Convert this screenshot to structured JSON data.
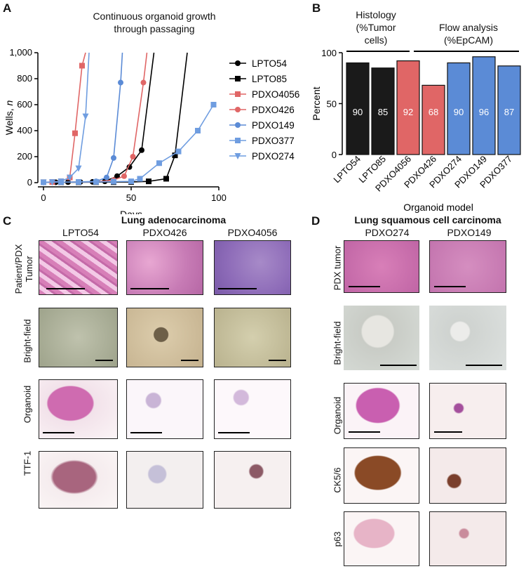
{
  "panels": {
    "A": "A",
    "B": "B",
    "C": "C",
    "D": "D"
  },
  "panelA": {
    "title_line1": "Continuous organoid growth",
    "title_line2": "through passaging"
  },
  "panelB": {
    "group1_line1": "Histology",
    "group1_line2": "(%Tumor",
    "group1_line3": "cells)",
    "group2_line1": "Flow analysis",
    "group2_line2": "(%EpCAM)"
  },
  "panelC": {
    "title": "Lung adenocarcinoma",
    "cols": [
      "LPTO54",
      "PDXO426",
      "PDXO4056"
    ],
    "rows": [
      "Patient/PDX Tumor",
      "Bright-field",
      "Organoid",
      "TTF-1"
    ]
  },
  "panelD": {
    "title": "Lung squamous cell carcinoma",
    "cols": [
      "PDXO274",
      "PDXO149"
    ],
    "rows": [
      "PDX tumor",
      "Bright-field",
      "Organoid",
      "CK5/6",
      "p63"
    ]
  },
  "chart_data": [
    {
      "type": "line",
      "title": "Continuous organoid growth through passaging",
      "xlabel": "Days",
      "ylabel": "Wells, n",
      "xlim": [
        0,
        100
      ],
      "ylim": [
        0,
        1000
      ],
      "xticks": [
        "0",
        "50",
        "100"
      ],
      "yticks": [
        "0",
        "200",
        "400",
        "600",
        "800",
        "1,000"
      ],
      "legend_position": "right",
      "series": [
        {
          "name": "LPTO54",
          "color": "#000000",
          "marker": "circle",
          "x": [
            0,
            7,
            14,
            21,
            28,
            35,
            42,
            49,
            56,
            63
          ],
          "y": [
            3,
            3,
            4,
            5,
            6,
            10,
            50,
            120,
            250,
            1000
          ]
        },
        {
          "name": "LPTO85",
          "color": "#000000",
          "marker": "square",
          "x": [
            0,
            10,
            20,
            30,
            40,
            50,
            60,
            70,
            75,
            82
          ],
          "y": [
            3,
            3,
            3,
            4,
            4,
            5,
            10,
            30,
            210,
            1000
          ]
        },
        {
          "name": "PDXO4056",
          "color": "#e06666",
          "marker": "square",
          "x": [
            0,
            5,
            10,
            15,
            18,
            22,
            24
          ],
          "y": [
            3,
            5,
            10,
            40,
            380,
            900,
            1000
          ]
        },
        {
          "name": "PDXO426",
          "color": "#e06666",
          "marker": "circle",
          "x": [
            0,
            10,
            20,
            30,
            40,
            46,
            51,
            57,
            59
          ],
          "y": [
            3,
            4,
            5,
            6,
            20,
            50,
            200,
            770,
            1000
          ]
        },
        {
          "name": "PDXO149",
          "color": "#5b8bd6",
          "marker": "circle",
          "x": [
            0,
            10,
            20,
            30,
            36,
            40,
            44,
            45
          ],
          "y": [
            3,
            4,
            5,
            10,
            40,
            190,
            770,
            1000
          ]
        },
        {
          "name": "PDXO377",
          "color": "#6f9de0",
          "marker": "square",
          "x": [
            0,
            10,
            20,
            30,
            40,
            50,
            55,
            66,
            77,
            88,
            97
          ],
          "y": [
            3,
            4,
            5,
            6,
            8,
            10,
            30,
            150,
            240,
            400,
            600
          ]
        },
        {
          "name": "PDXO274",
          "color": "#6f9de0",
          "marker": "triangle-down",
          "x": [
            0,
            5,
            10,
            15,
            20,
            24,
            26
          ],
          "y": [
            3,
            5,
            10,
            40,
            110,
            510,
            1000
          ]
        }
      ]
    },
    {
      "type": "bar",
      "xlabel": "Organoid model",
      "ylabel": "Percent",
      "ylim": [
        0,
        100
      ],
      "yticks": [
        "0",
        "50",
        "100"
      ],
      "categories": [
        "LPTO54",
        "LPTO85",
        "PDXO4056",
        "PDXO426",
        "PDXO274",
        "PDXO149",
        "PDXO377"
      ],
      "values": [
        90,
        85,
        92,
        68,
        90,
        96,
        87
      ],
      "value_labels": [
        "90",
        "85",
        "92",
        "68",
        "90",
        "96",
        "87"
      ],
      "colors": [
        "#1a1a1a",
        "#1a1a1a",
        "#e06666",
        "#e06666",
        "#5b8bd6",
        "#5b8bd6",
        "#5b8bd6"
      ]
    }
  ]
}
